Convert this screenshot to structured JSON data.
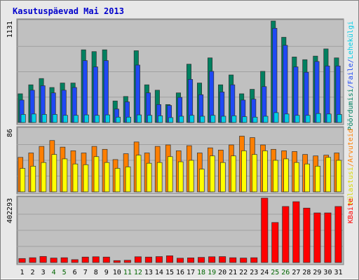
{
  "chart_data": {
    "type": "bar",
    "title": "Kasutuspäevad Mai 2013",
    "categories": [
      "1",
      "2",
      "3",
      "4",
      "5",
      "6",
      "7",
      "8",
      "9",
      "10",
      "11",
      "12",
      "13",
      "14",
      "15",
      "16",
      "17",
      "18",
      "19",
      "20",
      "21",
      "22",
      "23",
      "24",
      "25",
      "26",
      "27",
      "28",
      "29",
      "30",
      "31"
    ],
    "weekend_categories": [
      "4",
      "5",
      "11",
      "12",
      "18",
      "19",
      "25",
      "26"
    ],
    "panels": [
      {
        "id": "top",
        "ymax": 1131,
        "max_label": "1131",
        "series": [
          {
            "name": "Pöördumisi",
            "color": "#008060",
            "values": [
              320,
              420,
              490,
              390,
              440,
              440,
              810,
              790,
              810,
              240,
              290,
              800,
              420,
              360,
              200,
              330,
              650,
              440,
              720,
              420,
              530,
              320,
              370,
              570,
              1131,
              950,
              730,
              700,
              740,
              820,
              720
            ]
          },
          {
            "name": "Faile",
            "color": "#1f49f4",
            "values": [
              250,
              360,
              410,
              330,
              360,
              390,
              690,
              620,
              690,
              150,
              230,
              640,
              330,
              200,
              190,
              280,
              480,
              310,
              570,
              340,
              420,
              250,
              260,
              400,
              1050,
              860,
              620,
              560,
              680,
              630,
              630
            ]
          },
          {
            "name": "Lehekülgi",
            "color": "#00cde6",
            "values": [
              90,
              95,
              90,
              90,
              80,
              80,
              85,
              80,
              85,
              60,
              60,
              85,
              80,
              75,
              55,
              70,
              80,
              70,
              80,
              70,
              75,
              65,
              60,
              70,
              110,
              95,
              80,
              80,
              100,
              95,
              90
            ]
          }
        ]
      },
      {
        "id": "middle",
        "ymax": 86,
        "max_label": "86",
        "series": [
          {
            "name": "Arvuteid",
            "color": "#ff7f00",
            "values": [
              47,
              53,
              62,
              70,
              61,
              56,
              53,
              62,
              58,
              44,
              52,
              68,
              53,
              62,
              64,
              56,
              63,
              53,
              60,
              57,
              64,
              76,
              74,
              64,
              58,
              56,
              55,
              51,
              49,
              50,
              53
            ]
          },
          {
            "name": "Külastusi",
            "color": "#ffff00",
            "values": [
              32,
              35,
              40,
              51,
              45,
              38,
              37,
              48,
              40,
              32,
              34,
              50,
              39,
              40,
              48,
              41,
              43,
              31,
              49,
              40,
              49,
              56,
              51,
              56,
              43,
              45,
              40,
              38,
              35,
              47,
              43
            ]
          }
        ]
      },
      {
        "id": "bottom",
        "ymax": 402293,
        "max_label": "402293",
        "series": [
          {
            "name": "KBaite",
            "color": "#ff0000",
            "values": [
              25000,
              30000,
              38000,
              28000,
              30000,
              18000,
              34000,
              36000,
              34000,
              12000,
              14000,
              36000,
              34000,
              37000,
              42000,
              27000,
              29000,
              32000,
              36000,
              37000,
              30000,
              28000,
              30000,
              402293,
              250000,
              350000,
              380000,
              340000,
              310000,
              310000,
              350000
            ]
          }
        ]
      }
    ],
    "right_labels": {
      "top": [
        {
          "text": "Pöördumisi",
          "color": "#008060"
        },
        {
          "text": "/",
          "color": "#1f49f4"
        },
        {
          "text": "Faile",
          "color": "#1f49f4"
        },
        {
          "text": "/",
          "color": "#1f49f4"
        },
        {
          "text": "Lehekülgi",
          "color": "#00cde6"
        }
      ],
      "middle": [
        {
          "text": "Külastusi",
          "color": "#d8d800"
        },
        {
          "text": "/",
          "color": "#ff7f00"
        },
        {
          "text": "Arvuteid",
          "color": "#ff7f00"
        }
      ],
      "bottom": [
        {
          "text": "KBaite",
          "color": "#ff0000"
        }
      ]
    },
    "colors": {
      "background": "#e8e8e8",
      "plot": "#c0c0c0",
      "title": "#0000cc",
      "weekday_label": "#000000",
      "weekend_label": "#006600"
    }
  }
}
